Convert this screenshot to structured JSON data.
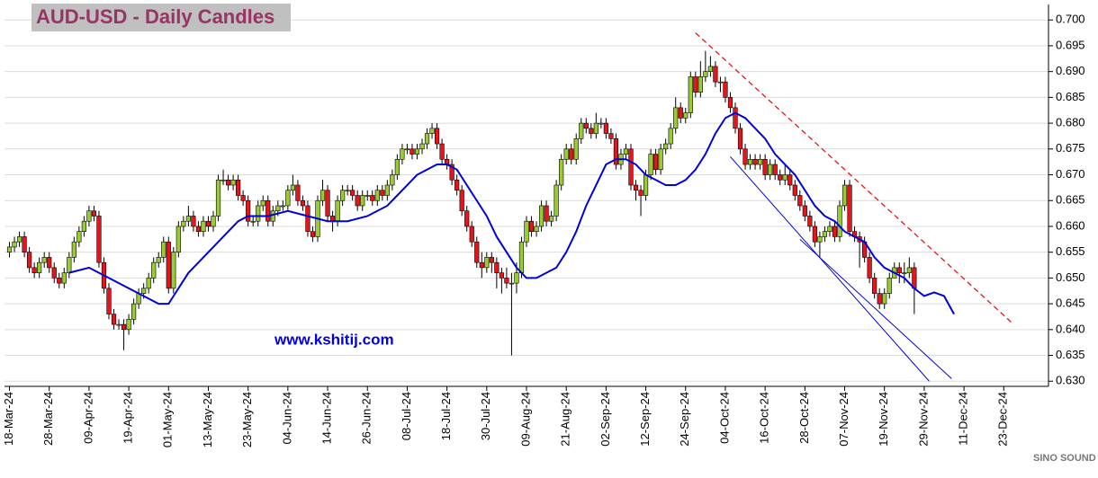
{
  "chart_data": {
    "type": "candlestick",
    "title": "AUD-USD - Daily Candles",
    "annotation": "www.kshitij.com",
    "watermark": "SINO SOUND",
    "up_color": "#99cc33",
    "down_color": "#e8141b",
    "xlim": [
      -1,
      209
    ],
    "ylim": [
      0.629,
      0.703
    ],
    "grid": true,
    "xticks": [
      {
        "value": 0,
        "label": "18-Mar-24"
      },
      {
        "value": 8,
        "label": "28-Mar-24"
      },
      {
        "value": 16,
        "label": "09-Apr-24"
      },
      {
        "value": 24,
        "label": "19-Apr-24"
      },
      {
        "value": 32,
        "label": "01-May-24"
      },
      {
        "value": 40,
        "label": "13-May-24"
      },
      {
        "value": 48,
        "label": "23-May-24"
      },
      {
        "value": 56,
        "label": "04-Jun-24"
      },
      {
        "value": 64,
        "label": "14-Jun-24"
      },
      {
        "value": 72,
        "label": "26-Jun-24"
      },
      {
        "value": 80,
        "label": "08-Jul-24"
      },
      {
        "value": 88,
        "label": "18-Jul-24"
      },
      {
        "value": 96,
        "label": "30-Jul-24"
      },
      {
        "value": 104,
        "label": "09-Aug-24"
      },
      {
        "value": 112,
        "label": "21-Aug-24"
      },
      {
        "value": 120,
        "label": "02-Sep-24"
      },
      {
        "value": 128,
        "label": "12-Sep-24"
      },
      {
        "value": 136,
        "label": "24-Sep-24"
      },
      {
        "value": 144,
        "label": "04-Oct-24"
      },
      {
        "value": 152,
        "label": "16-Oct-24"
      },
      {
        "value": 160,
        "label": "28-Oct-24"
      },
      {
        "value": 168,
        "label": "07-Nov-24"
      },
      {
        "value": 176,
        "label": "19-Nov-24"
      },
      {
        "value": 184,
        "label": "29-Nov-24"
      },
      {
        "value": 192,
        "label": "11-Dec-24"
      },
      {
        "value": 200,
        "label": "23-Dec-24"
      }
    ],
    "yticks": [
      {
        "value": 0.63,
        "label": "0.630"
      },
      {
        "value": 0.635,
        "label": "0.635"
      },
      {
        "value": 0.64,
        "label": "0.640"
      },
      {
        "value": 0.645,
        "label": "0.645"
      },
      {
        "value": 0.65,
        "label": "0.650"
      },
      {
        "value": 0.655,
        "label": "0.655"
      },
      {
        "value": 0.66,
        "label": "0.660"
      },
      {
        "value": 0.665,
        "label": "0.665"
      },
      {
        "value": 0.67,
        "label": "0.670"
      },
      {
        "value": 0.675,
        "label": "0.675"
      },
      {
        "value": 0.68,
        "label": "0.680"
      },
      {
        "value": 0.685,
        "label": "0.685"
      },
      {
        "value": 0.69,
        "label": "0.690"
      },
      {
        "value": 0.695,
        "label": "0.695"
      },
      {
        "value": 0.7,
        "label": "0.700"
      }
    ],
    "open": [
      0.655,
      0.656,
      0.657,
      0.658,
      0.655,
      0.652,
      0.651,
      0.653,
      0.654,
      0.652,
      0.65,
      0.649,
      0.651,
      0.654,
      0.657,
      0.659,
      0.661,
      0.663,
      0.662,
      0.653,
      0.648,
      0.643,
      0.641,
      0.641,
      0.64,
      0.642,
      0.645,
      0.647,
      0.648,
      0.65,
      0.653,
      0.654,
      0.657,
      0.648,
      0.655,
      0.66,
      0.661,
      0.662,
      0.66,
      0.659,
      0.661,
      0.66,
      0.662,
      0.669,
      0.669,
      0.668,
      0.669,
      0.666,
      0.665,
      0.661,
      0.661,
      0.664,
      0.665,
      0.661,
      0.663,
      0.664,
      0.664,
      0.667,
      0.668,
      0.665,
      0.664,
      0.659,
      0.658,
      0.665,
      0.667,
      0.662,
      0.661,
      0.665,
      0.667,
      0.667,
      0.666,
      0.664,
      0.666,
      0.666,
      0.665,
      0.667,
      0.666,
      0.668,
      0.67,
      0.673,
      0.675,
      0.675,
      0.674,
      0.675,
      0.676,
      0.678,
      0.679,
      0.676,
      0.673,
      0.672,
      0.669,
      0.667,
      0.663,
      0.66,
      0.657,
      0.653,
      0.652,
      0.654,
      0.653,
      0.651,
      0.65,
      0.649,
      0.649,
      0.651,
      0.657,
      0.661,
      0.659,
      0.66,
      0.664,
      0.661,
      0.662,
      0.668,
      0.673,
      0.675,
      0.673,
      0.677,
      0.68,
      0.679,
      0.678,
      0.68,
      0.68,
      0.678,
      0.677,
      0.672,
      0.674,
      0.675,
      0.668,
      0.667,
      0.666,
      0.67,
      0.674,
      0.671,
      0.675,
      0.676,
      0.679,
      0.683,
      0.681,
      0.682,
      0.689,
      0.686,
      0.689,
      0.69,
      0.691,
      0.688,
      0.688,
      0.685,
      0.683,
      0.679,
      0.675,
      0.672,
      0.673,
      0.672,
      0.673,
      0.67,
      0.672,
      0.67,
      0.669,
      0.67,
      0.668,
      0.666,
      0.664,
      0.662,
      0.66,
      0.657,
      0.658,
      0.659,
      0.66,
      0.658,
      0.664,
      0.668,
      0.659,
      0.658,
      0.657,
      0.654,
      0.65,
      0.647,
      0.645,
      0.647,
      0.65,
      0.652,
      0.651,
      0.651,
      0.652
    ],
    "high": [
      0.657,
      0.658,
      0.659,
      0.659,
      0.656,
      0.653,
      0.654,
      0.655,
      0.655,
      0.653,
      0.651,
      0.652,
      0.655,
      0.658,
      0.66,
      0.662,
      0.664,
      0.664,
      0.663,
      0.654,
      0.649,
      0.644,
      0.642,
      0.642,
      0.643,
      0.646,
      0.648,
      0.649,
      0.651,
      0.654,
      0.655,
      0.658,
      0.658,
      0.656,
      0.661,
      0.662,
      0.664,
      0.663,
      0.661,
      0.662,
      0.662,
      0.663,
      0.67,
      0.671,
      0.67,
      0.67,
      0.67,
      0.667,
      0.666,
      0.662,
      0.665,
      0.666,
      0.666,
      0.664,
      0.665,
      0.665,
      0.668,
      0.67,
      0.669,
      0.666,
      0.665,
      0.66,
      0.666,
      0.669,
      0.668,
      0.663,
      0.666,
      0.668,
      0.668,
      0.668,
      0.667,
      0.667,
      0.667,
      0.667,
      0.668,
      0.668,
      0.669,
      0.671,
      0.674,
      0.676,
      0.676,
      0.676,
      0.676,
      0.677,
      0.679,
      0.68,
      0.68,
      0.677,
      0.674,
      0.673,
      0.67,
      0.668,
      0.664,
      0.661,
      0.658,
      0.655,
      0.655,
      0.655,
      0.654,
      0.652,
      0.652,
      0.651,
      0.653,
      0.658,
      0.662,
      0.662,
      0.661,
      0.665,
      0.665,
      0.663,
      0.669,
      0.674,
      0.676,
      0.676,
      0.678,
      0.681,
      0.681,
      0.68,
      0.682,
      0.681,
      0.681,
      0.679,
      0.678,
      0.675,
      0.676,
      0.676,
      0.669,
      0.668,
      0.671,
      0.675,
      0.675,
      0.676,
      0.677,
      0.68,
      0.685,
      0.684,
      0.683,
      0.69,
      0.69,
      0.692,
      0.694,
      0.693,
      0.692,
      0.689,
      0.689,
      0.686,
      0.684,
      0.68,
      0.676,
      0.674,
      0.674,
      0.674,
      0.674,
      0.673,
      0.673,
      0.671,
      0.672,
      0.671,
      0.669,
      0.667,
      0.665,
      0.663,
      0.661,
      0.659,
      0.66,
      0.661,
      0.661,
      0.665,
      0.669,
      0.669,
      0.66,
      0.659,
      0.658,
      0.655,
      0.651,
      0.648,
      0.648,
      0.651,
      0.653,
      0.653,
      0.653,
      0.654,
      0.653
    ],
    "low": [
      0.654,
      0.655,
      0.656,
      0.654,
      0.651,
      0.65,
      0.65,
      0.652,
      0.651,
      0.649,
      0.648,
      0.648,
      0.65,
      0.653,
      0.656,
      0.658,
      0.66,
      0.661,
      0.652,
      0.647,
      0.642,
      0.64,
      0.64,
      0.636,
      0.639,
      0.641,
      0.644,
      0.646,
      0.647,
      0.649,
      0.652,
      0.653,
      0.647,
      0.647,
      0.654,
      0.659,
      0.66,
      0.659,
      0.658,
      0.658,
      0.659,
      0.659,
      0.661,
      0.668,
      0.667,
      0.667,
      0.665,
      0.664,
      0.66,
      0.66,
      0.66,
      0.663,
      0.66,
      0.66,
      0.662,
      0.663,
      0.663,
      0.666,
      0.664,
      0.663,
      0.658,
      0.657,
      0.657,
      0.664,
      0.661,
      0.659,
      0.66,
      0.664,
      0.666,
      0.665,
      0.663,
      0.663,
      0.665,
      0.664,
      0.664,
      0.665,
      0.665,
      0.667,
      0.669,
      0.672,
      0.674,
      0.673,
      0.673,
      0.674,
      0.675,
      0.677,
      0.675,
      0.672,
      0.671,
      0.668,
      0.666,
      0.662,
      0.659,
      0.656,
      0.652,
      0.65,
      0.651,
      0.651,
      0.648,
      0.647,
      0.648,
      0.635,
      0.647,
      0.65,
      0.656,
      0.658,
      0.658,
      0.659,
      0.66,
      0.66,
      0.661,
      0.667,
      0.672,
      0.672,
      0.672,
      0.676,
      0.678,
      0.677,
      0.677,
      0.679,
      0.677,
      0.676,
      0.671,
      0.671,
      0.673,
      0.667,
      0.665,
      0.662,
      0.665,
      0.669,
      0.67,
      0.67,
      0.674,
      0.675,
      0.678,
      0.68,
      0.68,
      0.681,
      0.685,
      0.685,
      0.688,
      0.689,
      0.687,
      0.686,
      0.684,
      0.682,
      0.678,
      0.674,
      0.671,
      0.671,
      0.671,
      0.671,
      0.669,
      0.669,
      0.669,
      0.668,
      0.668,
      0.667,
      0.665,
      0.663,
      0.661,
      0.659,
      0.656,
      0.654,
      0.657,
      0.658,
      0.657,
      0.657,
      0.663,
      0.658,
      0.657,
      0.652,
      0.653,
      0.649,
      0.646,
      0.644,
      0.644,
      0.646,
      0.65,
      0.649,
      0.649,
      0.65,
      0.643
    ],
    "close": [
      0.656,
      0.657,
      0.658,
      0.655,
      0.652,
      0.651,
      0.653,
      0.654,
      0.652,
      0.65,
      0.649,
      0.651,
      0.654,
      0.657,
      0.659,
      0.661,
      0.663,
      0.662,
      0.653,
      0.648,
      0.643,
      0.641,
      0.641,
      0.64,
      0.642,
      0.645,
      0.647,
      0.648,
      0.65,
      0.653,
      0.654,
      0.657,
      0.648,
      0.655,
      0.66,
      0.661,
      0.662,
      0.66,
      0.659,
      0.661,
      0.66,
      0.662,
      0.669,
      0.669,
      0.668,
      0.669,
      0.666,
      0.665,
      0.661,
      0.661,
      0.664,
      0.665,
      0.661,
      0.663,
      0.664,
      0.664,
      0.667,
      0.668,
      0.665,
      0.664,
      0.659,
      0.658,
      0.665,
      0.667,
      0.662,
      0.661,
      0.665,
      0.667,
      0.667,
      0.666,
      0.664,
      0.666,
      0.666,
      0.665,
      0.667,
      0.666,
      0.668,
      0.67,
      0.673,
      0.675,
      0.675,
      0.674,
      0.675,
      0.676,
      0.678,
      0.679,
      0.676,
      0.673,
      0.672,
      0.669,
      0.667,
      0.663,
      0.66,
      0.657,
      0.653,
      0.652,
      0.654,
      0.653,
      0.651,
      0.65,
      0.649,
      0.649,
      0.651,
      0.657,
      0.661,
      0.659,
      0.66,
      0.664,
      0.661,
      0.662,
      0.668,
      0.673,
      0.675,
      0.673,
      0.677,
      0.68,
      0.679,
      0.678,
      0.68,
      0.68,
      0.678,
      0.677,
      0.672,
      0.674,
      0.675,
      0.668,
      0.667,
      0.666,
      0.67,
      0.674,
      0.671,
      0.675,
      0.676,
      0.679,
      0.683,
      0.681,
      0.682,
      0.689,
      0.686,
      0.689,
      0.69,
      0.691,
      0.688,
      0.688,
      0.685,
      0.683,
      0.679,
      0.675,
      0.672,
      0.673,
      0.672,
      0.673,
      0.67,
      0.672,
      0.67,
      0.669,
      0.67,
      0.668,
      0.666,
      0.664,
      0.662,
      0.66,
      0.657,
      0.658,
      0.659,
      0.66,
      0.658,
      0.664,
      0.668,
      0.659,
      0.658,
      0.657,
      0.654,
      0.65,
      0.647,
      0.645,
      0.647,
      0.65,
      0.652,
      0.651,
      0.651,
      0.652,
      0.648
    ],
    "ma": {
      "color": "#0000dd",
      "x": [
        12,
        16,
        20,
        24,
        28,
        30,
        32,
        34,
        36,
        38,
        40,
        42,
        44,
        46,
        48,
        52,
        56,
        60,
        64,
        68,
        72,
        76,
        78,
        80,
        82,
        84,
        86,
        88,
        90,
        92,
        94,
        96,
        98,
        100,
        102,
        104,
        106,
        108,
        110,
        112,
        114,
        116,
        118,
        120,
        122,
        124,
        126,
        128,
        130,
        132,
        134,
        136,
        138,
        140,
        142,
        144,
        146,
        148,
        150,
        152,
        154,
        156,
        158,
        160,
        162,
        164,
        166,
        168,
        170,
        172,
        174,
        176,
        178,
        180,
        182,
        184,
        186,
        188,
        190
      ],
      "values": [
        0.651,
        0.652,
        0.65,
        0.648,
        0.646,
        0.645,
        0.645,
        0.648,
        0.651,
        0.653,
        0.655,
        0.657,
        0.659,
        0.661,
        0.662,
        0.662,
        0.663,
        0.662,
        0.661,
        0.661,
        0.662,
        0.664,
        0.666,
        0.668,
        0.67,
        0.671,
        0.672,
        0.672,
        0.671,
        0.668,
        0.665,
        0.662,
        0.658,
        0.655,
        0.652,
        0.65,
        0.65,
        0.651,
        0.652,
        0.655,
        0.659,
        0.664,
        0.668,
        0.672,
        0.673,
        0.673,
        0.672,
        0.67,
        0.669,
        0.668,
        0.668,
        0.669,
        0.671,
        0.674,
        0.678,
        0.681,
        0.682,
        0.681,
        0.679,
        0.677,
        0.674,
        0.672,
        0.67,
        0.667,
        0.664,
        0.662,
        0.661,
        0.659,
        0.658,
        0.657,
        0.654,
        0.652,
        0.651,
        0.65,
        0.648,
        0.6465,
        0.6472,
        0.6465,
        0.643
      ]
    },
    "trendlines": [
      {
        "color": "#e8141b",
        "dashed": true,
        "x": [
          138,
          202
        ],
        "y": [
          0.6975,
          0.641
        ]
      },
      {
        "color": "#0000dd",
        "dashed": false,
        "x": [
          145,
          185
        ],
        "y": [
          0.6735,
          0.63
        ]
      },
      {
        "color": "#0000dd",
        "dashed": false,
        "x": [
          159,
          189.5
        ],
        "y": [
          0.6575,
          0.6305
        ]
      }
    ]
  }
}
